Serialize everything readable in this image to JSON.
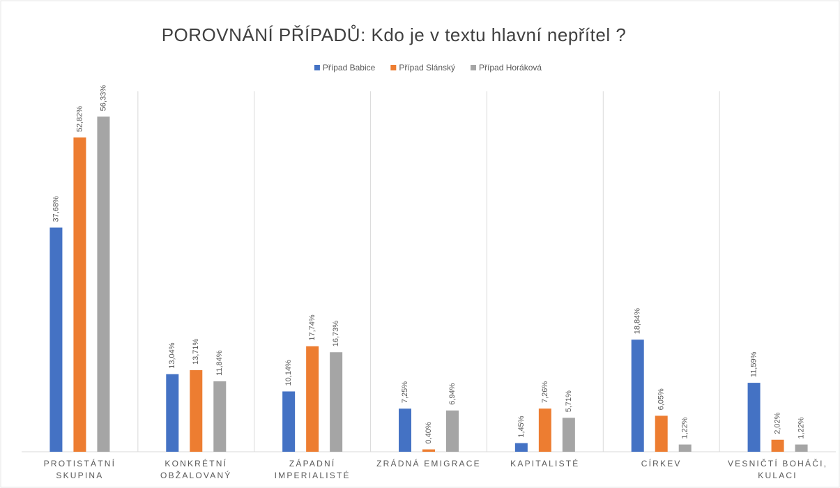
{
  "chart_data": {
    "type": "bar",
    "title": "POROVNÁNÍ PŘÍPADŮ: Kdo je v textu hlavní nepřítel ?",
    "categories": [
      "PROTISTÁTNÍ SKUPINA",
      "KONKRÉTNÍ OBŽALOVANÝ",
      "ZÁPADNÍ IMPERIALISTÉ",
      "ZRÁDNÁ EMIGRACE",
      "KAPITALISTÉ",
      "CÍRKEV",
      "VESNIČTÍ BOHÁČI, KULACI"
    ],
    "series": [
      {
        "name": "Případ Babice",
        "color": "#4472c4",
        "values": [
          37.68,
          13.04,
          10.14,
          7.25,
          1.45,
          18.84,
          11.59
        ],
        "value_labels": [
          "37,68%",
          "13,04%",
          "10,14%",
          "7,25%",
          "1,45%",
          "18,84%",
          "11,59%"
        ]
      },
      {
        "name": "Případ Slánský",
        "color": "#ed7d31",
        "values": [
          52.82,
          13.71,
          17.74,
          0.4,
          7.26,
          6.05,
          2.02
        ],
        "value_labels": [
          "52,82%",
          "13,71%",
          "17,74%",
          "0,40%",
          "7,26%",
          "6,05%",
          "2,02%"
        ]
      },
      {
        "name": "Případ Horáková",
        "color": "#a5a5a5",
        "values": [
          56.33,
          11.84,
          16.73,
          6.94,
          5.71,
          1.22,
          1.22
        ],
        "value_labels": [
          "56,33%",
          "11,84%",
          "16,73%",
          "6,94%",
          "5,71%",
          "1,22%",
          "1,22%"
        ]
      }
    ],
    "ylim": [
      0,
      60
    ],
    "legend": "top"
  }
}
